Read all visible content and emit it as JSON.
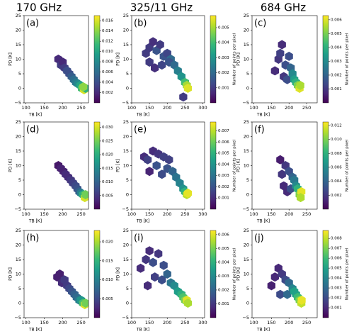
{
  "figure": {
    "column_titles": [
      "170 GHz",
      "325/11 GHz",
      "684 GHz"
    ]
  },
  "chart_data": [
    {
      "type": "scatter",
      "title": "(a)",
      "xlabel": "TB [K]",
      "ylabel": "PD [K]",
      "xlim": [
        95,
        270
      ],
      "ylim": [
        -5,
        25
      ],
      "xticks": [
        100,
        150,
        200,
        250
      ],
      "yticks": [
        {
          "value": -5,
          "label": "−5"
        },
        0,
        5,
        10,
        15,
        20,
        25
      ],
      "clim": [
        0,
        0.017
      ],
      "cticks": [
        0.002,
        0.004,
        0.006,
        0.008,
        {
          "value": 0.01,
          "label": "0.010"
        },
        0.012,
        0.014,
        0.016
      ],
      "x": [
        188,
        195,
        200,
        205,
        212,
        218,
        224,
        230,
        236,
        242,
        248,
        252,
        258,
        262,
        256
      ],
      "y": [
        10,
        8,
        9,
        7,
        6,
        5,
        4,
        3,
        2,
        1.5,
        1,
        0,
        -0.5,
        0,
        0.5
      ],
      "values": [
        0.002,
        0.003,
        0.002,
        0.003,
        0.004,
        0.004,
        0.005,
        0.006,
        0.007,
        0.008,
        0.01,
        0.012,
        0.016,
        0.011,
        0.014
      ]
    },
    {
      "type": "scatter",
      "title": "(b)",
      "xlabel": "TB [K]",
      "ylabel": "PD [K]",
      "colorbar_label": "Number of points per pixel",
      "xlim": [
        100,
        305
      ],
      "ylim": [
        -5,
        25
      ],
      "xticks": [
        100,
        150,
        200,
        250,
        300
      ],
      "yticks": [
        {
          "value": -5,
          "label": "−5"
        },
        0,
        5,
        10,
        15,
        20,
        25
      ],
      "clim": [
        0,
        0.0058
      ],
      "cticks": [
        0.001,
        0.002,
        0.003,
        0.004,
        0.005
      ],
      "x": [
        140,
        150,
        160,
        170,
        180,
        190,
        200,
        210,
        150,
        165,
        185,
        205,
        220,
        230,
        240,
        245,
        250,
        255,
        258
      ],
      "y": [
        12,
        14,
        16,
        13,
        15,
        11,
        12,
        10,
        9,
        7,
        8,
        9,
        8,
        6,
        4,
        -3,
        2,
        1,
        0
      ],
      "values": [
        0.001,
        0.001,
        0.0008,
        0.0015,
        0.001,
        0.0015,
        0.0012,
        0.002,
        0.001,
        0.0008,
        0.0012,
        0.0015,
        0.002,
        0.0025,
        0.003,
        0.001,
        0.004,
        0.005,
        0.0055
      ]
    },
    {
      "type": "scatter",
      "title": "(c)",
      "xlabel": "TB [K]",
      "ylabel": "PD [K]",
      "colorbar_label": "Number of points per pixel",
      "xlim": [
        95,
        280
      ],
      "ylim": [
        -5,
        25
      ],
      "xticks": [
        100,
        150,
        200,
        250
      ],
      "yticks": [
        {
          "value": -5,
          "label": "−5"
        },
        0,
        5,
        10,
        15,
        20,
        25
      ],
      "clim": [
        0,
        0.0063
      ],
      "cticks": [
        0.001,
        0.002,
        0.003,
        0.004,
        0.005,
        0.006
      ],
      "x": [
        160,
        170,
        180,
        175,
        190,
        200,
        185,
        195,
        205,
        210,
        215,
        220,
        225,
        230,
        232
      ],
      "y": [
        6,
        10,
        15,
        12,
        8,
        11,
        4,
        3,
        7,
        5,
        3,
        2,
        1,
        0,
        1
      ],
      "values": [
        0.0008,
        0.001,
        0.0008,
        0.0012,
        0.0015,
        0.0015,
        0.001,
        0.0015,
        0.002,
        0.003,
        0.0035,
        0.004,
        0.005,
        0.006,
        0.0055
      ]
    },
    {
      "type": "scatter",
      "title": "(d)",
      "xlabel": "TB [K]",
      "ylabel": "PD [K]",
      "xlim": [
        95,
        270
      ],
      "ylim": [
        -5,
        25
      ],
      "xticks": [
        100,
        150,
        200,
        250
      ],
      "yticks": [
        {
          "value": -5,
          "label": "−5"
        },
        0,
        5,
        10,
        15,
        20,
        25
      ],
      "clim": [
        0,
        0.032
      ],
      "cticks": [
        0.005,
        {
          "value": 0.01,
          "label": "0.010"
        },
        0.015,
        {
          "value": 0.02,
          "label": "0.020"
        },
        0.025,
        {
          "value": 0.03,
          "label": "0.030"
        }
      ],
      "x": [
        188,
        195,
        202,
        208,
        215,
        222,
        228,
        235,
        240,
        245,
        250,
        255,
        260,
        262
      ],
      "y": [
        10,
        9,
        8,
        7,
        6,
        5,
        4,
        3,
        2,
        1,
        0.5,
        0,
        -1,
        0
      ],
      "values": [
        0.002,
        0.003,
        0.003,
        0.004,
        0.004,
        0.005,
        0.006,
        0.007,
        0.008,
        0.01,
        0.014,
        0.02,
        0.03,
        0.025
      ]
    },
    {
      "type": "scatter",
      "title": "(e)",
      "xlabel": "TB [K]",
      "ylabel": "PD [K]",
      "colorbar_label": "Number of points per pixel",
      "xlim": [
        100,
        305
      ],
      "ylim": [
        -5,
        25
      ],
      "xticks": [
        100,
        150,
        200,
        250,
        300
      ],
      "yticks": [
        {
          "value": -5,
          "label": "−5"
        },
        0,
        5,
        10,
        15,
        20,
        25
      ],
      "clim": [
        0,
        0.0078
      ],
      "cticks": [
        0.001,
        0.002,
        0.003,
        0.004,
        0.005,
        0.006,
        0.007
      ],
      "x": [
        135,
        145,
        160,
        175,
        190,
        205,
        150,
        170,
        185,
        200,
        215,
        225,
        235,
        245,
        250,
        255,
        258
      ],
      "y": [
        13,
        12,
        15,
        14,
        13,
        12,
        8,
        10,
        7,
        9,
        8,
        6,
        4,
        2,
        1,
        0,
        0.5
      ],
      "values": [
        0.001,
        0.0015,
        0.001,
        0.0012,
        0.0015,
        0.0015,
        0.0008,
        0.002,
        0.0018,
        0.002,
        0.0025,
        0.003,
        0.0035,
        0.004,
        0.005,
        0.007,
        0.0075
      ]
    },
    {
      "type": "scatter",
      "title": "(f)",
      "xlabel": "TB [K]",
      "ylabel": "PD [K]",
      "colorbar_label": "Number of points per pixel",
      "xlim": [
        95,
        280
      ],
      "ylim": [
        -5,
        25
      ],
      "xticks": [
        100,
        150,
        200,
        250
      ],
      "yticks": [
        {
          "value": -5,
          "label": "−5"
        },
        0,
        5,
        10,
        15,
        20,
        25
      ],
      "clim": [
        0,
        0.0125
      ],
      "cticks": [
        0.002,
        0.004,
        0.006,
        0.008,
        {
          "value": 0.01,
          "label": "0.010"
        },
        0.012
      ],
      "x": [
        175,
        180,
        190,
        185,
        200,
        195,
        210,
        205,
        215,
        220,
        225,
        230,
        235,
        233
      ],
      "y": [
        12,
        7,
        10,
        3,
        8,
        1,
        6,
        2,
        5,
        3,
        2,
        0,
        1,
        -1
      ],
      "values": [
        0.001,
        0.002,
        0.002,
        0.0015,
        0.003,
        0.0015,
        0.004,
        0.003,
        0.005,
        0.006,
        0.008,
        0.01,
        0.012,
        0.011
      ]
    },
    {
      "type": "scatter",
      "title": "(h)",
      "xlabel": "TB [K]",
      "ylabel": "PD [K]",
      "xlim": [
        95,
        270
      ],
      "ylim": [
        -5,
        25
      ],
      "xticks": [
        100,
        150,
        200,
        250
      ],
      "yticks": [
        {
          "value": -5,
          "label": "−5"
        },
        0,
        5,
        10,
        15,
        20,
        25
      ],
      "clim": [
        0,
        0.023
      ],
      "cticks": [
        0.005,
        {
          "value": 0.01,
          "label": "0.010"
        },
        0.015,
        {
          "value": 0.02,
          "label": "0.020"
        }
      ],
      "x": [
        185,
        192,
        198,
        205,
        212,
        218,
        225,
        232,
        238,
        245,
        250,
        255,
        260,
        262
      ],
      "y": [
        9,
        10,
        7,
        8,
        6,
        5,
        4,
        3,
        2,
        1,
        1,
        0,
        -0.5,
        0
      ],
      "values": [
        0.002,
        0.002,
        0.003,
        0.004,
        0.004,
        0.005,
        0.006,
        0.007,
        0.008,
        0.01,
        0.012,
        0.016,
        0.022,
        0.018
      ]
    },
    {
      "type": "scatter",
      "title": "(i)",
      "xlabel": "TB [K]",
      "ylabel": "PD [K]",
      "colorbar_label": "Number of points per pixel",
      "xlim": [
        100,
        305
      ],
      "ylim": [
        -5,
        25
      ],
      "xticks": [
        100,
        150,
        200,
        250,
        300
      ],
      "yticks": [
        {
          "value": -5,
          "label": "−5"
        },
        0,
        5,
        10,
        15,
        20,
        25
      ],
      "clim": [
        0,
        0.0063
      ],
      "cticks": [
        0.001,
        0.002,
        0.003,
        0.004,
        0.005,
        0.006
      ],
      "x": [
        125,
        140,
        150,
        160,
        175,
        190,
        145,
        165,
        185,
        200,
        210,
        220,
        230,
        240,
        245,
        250,
        255,
        258
      ],
      "y": [
        12,
        15,
        18,
        14,
        17,
        13,
        6,
        9,
        8,
        10,
        7,
        6,
        4,
        3,
        2,
        1,
        1,
        0
      ],
      "values": [
        0.0008,
        0.001,
        0.0008,
        0.0015,
        0.001,
        0.0015,
        0.0008,
        0.0012,
        0.0015,
        0.002,
        0.0025,
        0.003,
        0.0035,
        0.004,
        0.0045,
        0.005,
        0.006,
        0.0055
      ]
    },
    {
      "type": "scatter",
      "title": "(j)",
      "xlabel": "TB [K]",
      "ylabel": "PD [K]",
      "colorbar_label": "Number of points per pixel",
      "xlim": [
        95,
        280
      ],
      "ylim": [
        -5,
        25
      ],
      "xticks": [
        100,
        150,
        200,
        250
      ],
      "yticks": [
        {
          "value": -5,
          "label": "−5"
        },
        0,
        5,
        10,
        15,
        20,
        25
      ],
      "clim": [
        0,
        0.0088
      ],
      "cticks": [
        0.001,
        0.002,
        0.003,
        0.004,
        0.005,
        0.006,
        0.007,
        0.008
      ],
      "x": [
        150,
        160,
        170,
        180,
        190,
        200,
        210,
        175,
        195,
        215,
        220,
        225,
        230,
        235,
        236
      ],
      "y": [
        6,
        9,
        12,
        10,
        8,
        7,
        5,
        3,
        3,
        4,
        3,
        2,
        1,
        0,
        1
      ],
      "values": [
        0.0008,
        0.001,
        0.001,
        0.0015,
        0.002,
        0.003,
        0.004,
        0.002,
        0.003,
        0.005,
        0.005,
        0.006,
        0.007,
        0.008,
        0.0085
      ]
    }
  ]
}
